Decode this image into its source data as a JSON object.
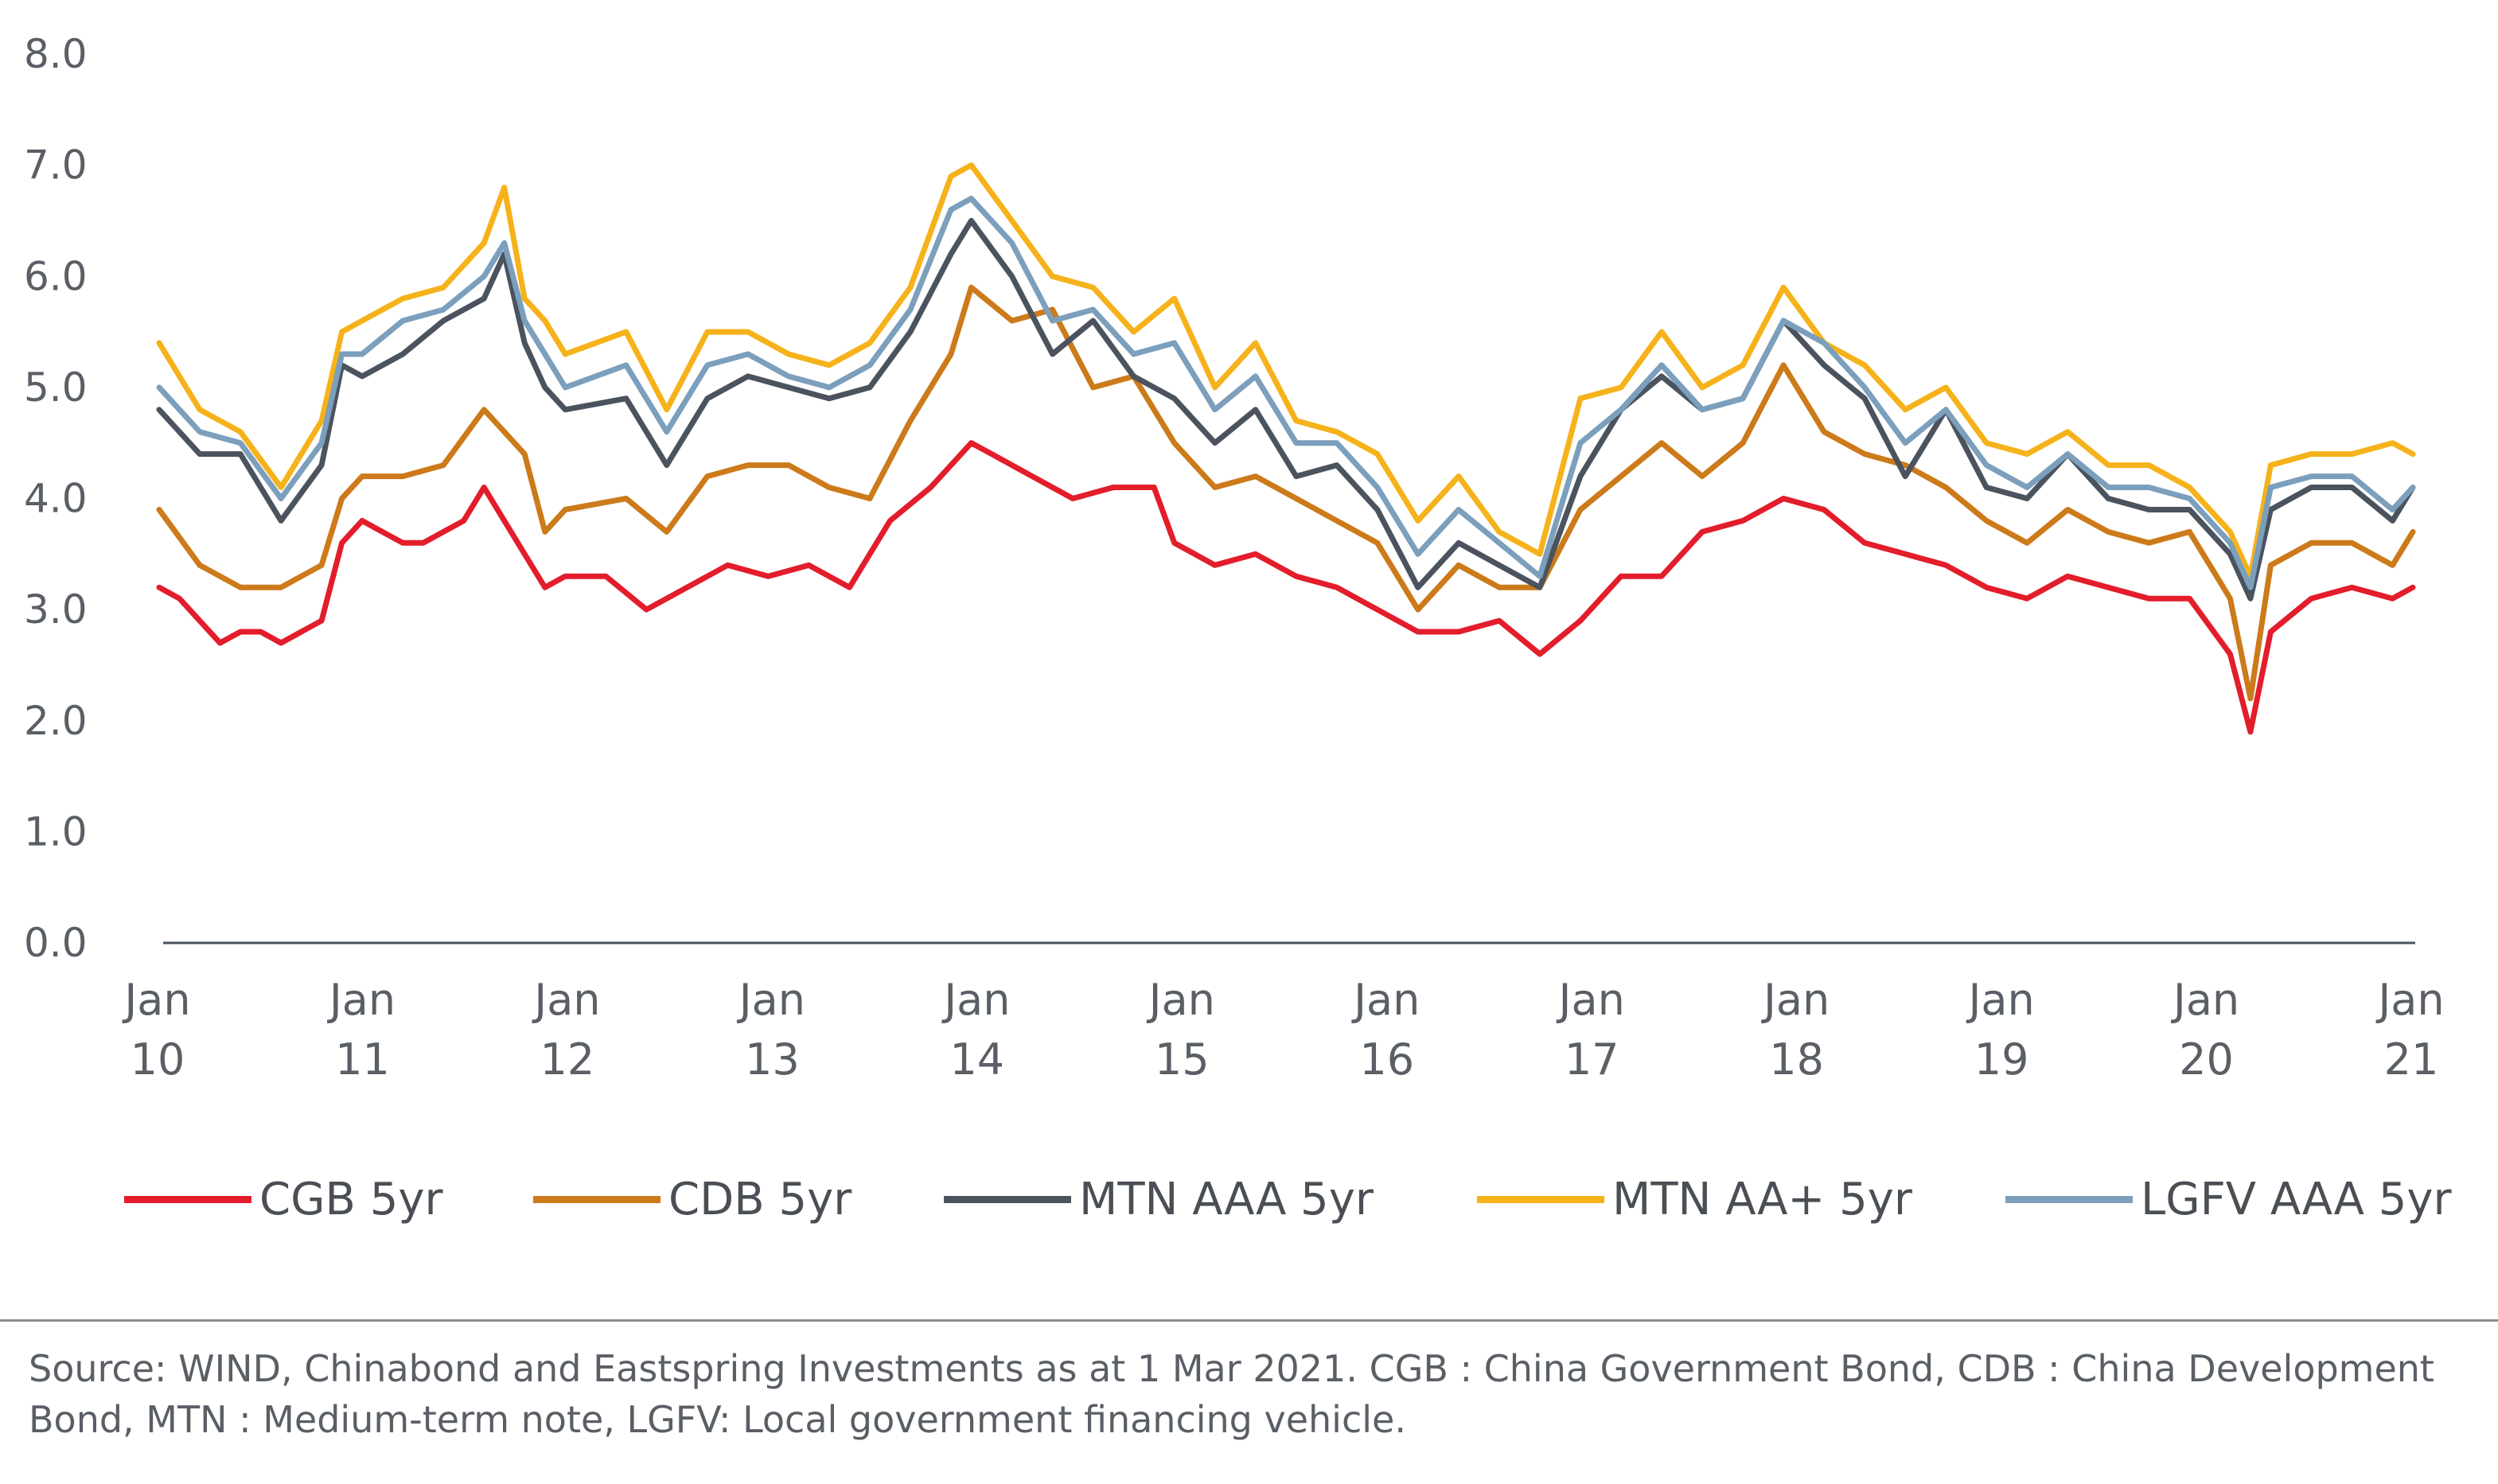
{
  "chart_data": {
    "type": "line",
    "x_ticks": [
      {
        "top": "Jan",
        "bottom": "10"
      },
      {
        "top": "Jan",
        "bottom": "11"
      },
      {
        "top": "Jan",
        "bottom": "12"
      },
      {
        "top": "Jan",
        "bottom": "13"
      },
      {
        "top": "Jan",
        "bottom": "14"
      },
      {
        "top": "Jan",
        "bottom": "15"
      },
      {
        "top": "Jan",
        "bottom": "16"
      },
      {
        "top": "Jan",
        "bottom": "17"
      },
      {
        "top": "Jan",
        "bottom": "18"
      },
      {
        "top": "Jan",
        "bottom": "19"
      },
      {
        "top": "Jan",
        "bottom": "20"
      },
      {
        "top": "Jan",
        "bottom": "21"
      }
    ],
    "y_ticks": [
      "0.0",
      "1.0",
      "2.0",
      "3.0",
      "4.0",
      "5.0",
      "6.0",
      "7.0",
      "8.0"
    ],
    "ylim": [
      0,
      8
    ],
    "x_unit": "year",
    "xlim": [
      2010.0,
      2021.1
    ],
    "grid": false,
    "legend_position": "bottom",
    "series": [
      {
        "name": "CGB 5yr",
        "color": "#e31d2b",
        "x": [
          2010.0,
          2010.1,
          2010.2,
          2010.3,
          2010.4,
          2010.5,
          2010.6,
          2010.7,
          2010.8,
          2010.9,
          2011.0,
          2011.1,
          2011.2,
          2011.3,
          2011.5,
          2011.6,
          2011.7,
          2011.8,
          2011.9,
          2012.0,
          2012.2,
          2012.4,
          2012.6,
          2012.8,
          2013.0,
          2013.2,
          2013.4,
          2013.6,
          2013.8,
          2014.0,
          2014.1,
          2014.3,
          2014.5,
          2014.7,
          2014.9,
          2015.0,
          2015.2,
          2015.4,
          2015.6,
          2015.8,
          2016.0,
          2016.2,
          2016.4,
          2016.6,
          2016.8,
          2017.0,
          2017.2,
          2017.4,
          2017.6,
          2017.8,
          2018.0,
          2018.2,
          2018.4,
          2018.6,
          2018.8,
          2019.0,
          2019.2,
          2019.4,
          2019.6,
          2019.8,
          2020.0,
          2020.2,
          2020.3,
          2020.4,
          2020.6,
          2020.8,
          2021.0,
          2021.1
        ],
        "values": [
          3.2,
          3.1,
          2.9,
          2.7,
          2.8,
          2.8,
          2.7,
          2.8,
          2.9,
          3.6,
          3.8,
          3.7,
          3.6,
          3.6,
          3.8,
          4.1,
          3.8,
          3.5,
          3.2,
          3.3,
          3.3,
          3.0,
          3.2,
          3.4,
          3.3,
          3.4,
          3.2,
          3.8,
          4.1,
          4.5,
          4.4,
          4.2,
          4.0,
          4.1,
          4.1,
          3.6,
          3.4,
          3.5,
          3.3,
          3.2,
          3.0,
          2.8,
          2.8,
          2.9,
          2.6,
          2.9,
          3.3,
          3.3,
          3.7,
          3.8,
          4.0,
          3.9,
          3.6,
          3.5,
          3.4,
          3.2,
          3.1,
          3.3,
          3.2,
          3.1,
          3.1,
          2.6,
          1.9,
          2.8,
          3.1,
          3.2,
          3.1,
          3.2
        ]
      },
      {
        "name": "CDB 5yr",
        "color": "#cc7a1a",
        "x": [
          2010.0,
          2010.2,
          2010.4,
          2010.6,
          2010.8,
          2010.9,
          2011.0,
          2011.2,
          2011.4,
          2011.6,
          2011.8,
          2011.9,
          2012.0,
          2012.3,
          2012.5,
          2012.7,
          2012.9,
          2013.1,
          2013.3,
          2013.5,
          2013.7,
          2013.9,
          2014.0,
          2014.2,
          2014.4,
          2014.6,
          2014.8,
          2015.0,
          2015.2,
          2015.4,
          2015.6,
          2015.8,
          2016.0,
          2016.2,
          2016.4,
          2016.6,
          2016.8,
          2017.0,
          2017.2,
          2017.4,
          2017.6,
          2017.8,
          2018.0,
          2018.2,
          2018.4,
          2018.6,
          2018.8,
          2019.0,
          2019.2,
          2019.4,
          2019.6,
          2019.8,
          2020.0,
          2020.2,
          2020.3,
          2020.4,
          2020.6,
          2020.8,
          2021.0,
          2021.1
        ],
        "values": [
          3.9,
          3.4,
          3.2,
          3.2,
          3.4,
          4.0,
          4.2,
          4.2,
          4.3,
          4.8,
          4.4,
          3.7,
          3.9,
          4.0,
          3.7,
          4.2,
          4.3,
          4.3,
          4.1,
          4.0,
          4.7,
          5.3,
          5.9,
          5.6,
          5.7,
          5.0,
          5.1,
          4.5,
          4.1,
          4.2,
          4.0,
          3.8,
          3.6,
          3.0,
          3.4,
          3.2,
          3.2,
          3.9,
          4.2,
          4.5,
          4.2,
          4.5,
          5.2,
          4.6,
          4.4,
          4.3,
          4.1,
          3.8,
          3.6,
          3.9,
          3.7,
          3.6,
          3.7,
          3.1,
          2.2,
          3.4,
          3.6,
          3.6,
          3.4,
          3.7
        ]
      },
      {
        "name": "MTN AAA 5yr",
        "color": "#4a535e",
        "x": [
          2010.0,
          2010.2,
          2010.4,
          2010.6,
          2010.8,
          2010.9,
          2011.0,
          2011.2,
          2011.4,
          2011.6,
          2011.7,
          2011.8,
          2011.9,
          2012.0,
          2012.3,
          2012.5,
          2012.7,
          2012.9,
          2013.1,
          2013.3,
          2013.5,
          2013.7,
          2013.9,
          2014.0,
          2014.2,
          2014.4,
          2014.6,
          2014.8,
          2015.0,
          2015.2,
          2015.4,
          2015.6,
          2015.8,
          2016.0,
          2016.2,
          2016.4,
          2016.6,
          2016.8,
          2017.0,
          2017.2,
          2017.4,
          2017.6,
          2017.8,
          2018.0,
          2018.2,
          2018.4,
          2018.6,
          2018.8,
          2019.0,
          2019.2,
          2019.4,
          2019.6,
          2019.8,
          2020.0,
          2020.2,
          2020.3,
          2020.4,
          2020.6,
          2020.8,
          2021.0,
          2021.1
        ],
        "values": [
          4.8,
          4.4,
          4.4,
          3.8,
          4.3,
          5.2,
          5.1,
          5.3,
          5.6,
          5.8,
          6.2,
          5.4,
          5.0,
          4.8,
          4.9,
          4.3,
          4.9,
          5.1,
          5.0,
          4.9,
          5.0,
          5.5,
          6.2,
          6.5,
          6.0,
          5.3,
          5.6,
          5.1,
          4.9,
          4.5,
          4.8,
          4.2,
          4.3,
          3.9,
          3.2,
          3.6,
          3.4,
          3.2,
          4.2,
          4.8,
          5.1,
          4.8,
          4.9,
          5.6,
          5.2,
          4.9,
          4.2,
          4.8,
          4.1,
          4.0,
          4.4,
          4.0,
          3.9,
          3.9,
          3.5,
          3.1,
          3.9,
          4.1,
          4.1,
          3.8,
          4.1
        ]
      },
      {
        "name": "MTN AA+ 5yr",
        "color": "#f6b21b",
        "x": [
          2010.0,
          2010.2,
          2010.4,
          2010.6,
          2010.8,
          2010.9,
          2011.0,
          2011.2,
          2011.4,
          2011.6,
          2011.7,
          2011.8,
          2011.9,
          2012.0,
          2012.3,
          2012.5,
          2012.7,
          2012.9,
          2013.1,
          2013.3,
          2013.5,
          2013.7,
          2013.9,
          2014.0,
          2014.2,
          2014.4,
          2014.6,
          2014.8,
          2015.0,
          2015.2,
          2015.4,
          2015.6,
          2015.8,
          2016.0,
          2016.2,
          2016.4,
          2016.6,
          2016.8,
          2017.0,
          2017.2,
          2017.4,
          2017.6,
          2017.8,
          2018.0,
          2018.2,
          2018.4,
          2018.6,
          2018.8,
          2019.0,
          2019.2,
          2019.4,
          2019.6,
          2019.8,
          2020.0,
          2020.2,
          2020.3,
          2020.4,
          2020.6,
          2020.8,
          2021.0,
          2021.1
        ],
        "values": [
          5.4,
          4.8,
          4.6,
          4.1,
          4.7,
          5.5,
          5.6,
          5.8,
          5.9,
          6.3,
          6.8,
          5.8,
          5.6,
          5.3,
          5.5,
          4.8,
          5.5,
          5.5,
          5.3,
          5.2,
          5.4,
          5.9,
          6.9,
          7.0,
          6.5,
          6.0,
          5.9,
          5.5,
          5.8,
          5.0,
          5.4,
          4.7,
          4.6,
          4.4,
          3.8,
          4.2,
          3.7,
          3.5,
          4.9,
          5.0,
          5.5,
          5.0,
          5.2,
          5.9,
          5.4,
          5.2,
          4.8,
          5.0,
          4.5,
          4.4,
          4.6,
          4.3,
          4.3,
          4.1,
          3.7,
          3.3,
          4.3,
          4.4,
          4.4,
          4.5,
          4.4
        ]
      },
      {
        "name": "LGFV AAA 5yr",
        "color": "#7b9fbc",
        "x": [
          2010.0,
          2010.2,
          2010.4,
          2010.6,
          2010.8,
          2010.9,
          2011.0,
          2011.2,
          2011.4,
          2011.6,
          2011.7,
          2011.8,
          2011.9,
          2012.0,
          2012.3,
          2012.5,
          2012.7,
          2012.9,
          2013.1,
          2013.3,
          2013.5,
          2013.7,
          2013.9,
          2014.0,
          2014.2,
          2014.4,
          2014.6,
          2014.8,
          2015.0,
          2015.2,
          2015.4,
          2015.6,
          2015.8,
          2016.0,
          2016.2,
          2016.4,
          2016.6,
          2016.8,
          2017.0,
          2017.2,
          2017.4,
          2017.6,
          2017.8,
          2018.0,
          2018.2,
          2018.4,
          2018.6,
          2018.8,
          2019.0,
          2019.2,
          2019.4,
          2019.6,
          2019.8,
          2020.0,
          2020.2,
          2020.3,
          2020.4,
          2020.6,
          2020.8,
          2021.0,
          2021.1
        ],
        "values": [
          5.0,
          4.6,
          4.5,
          4.0,
          4.5,
          5.3,
          5.3,
          5.6,
          5.7,
          6.0,
          6.3,
          5.6,
          5.3,
          5.0,
          5.2,
          4.6,
          5.2,
          5.3,
          5.1,
          5.0,
          5.2,
          5.7,
          6.6,
          6.7,
          6.3,
          5.6,
          5.7,
          5.3,
          5.4,
          4.8,
          5.1,
          4.5,
          4.5,
          4.1,
          3.5,
          3.9,
          3.6,
          3.3,
          4.5,
          4.8,
          5.2,
          4.8,
          4.9,
          5.6,
          5.4,
          5.0,
          4.5,
          4.8,
          4.3,
          4.1,
          4.4,
          4.1,
          4.1,
          4.0,
          3.6,
          3.2,
          4.1,
          4.2,
          4.2,
          3.9,
          4.1
        ]
      }
    ]
  },
  "footnote": {
    "line1": "Source: WIND, Chinabond and Eastspring Investments as at 1 Mar 2021. CGB : China Government Bond, CDB : China Development",
    "line2": "Bond, MTN : Medium-term note, LGFV: Local government financing vehicle."
  }
}
